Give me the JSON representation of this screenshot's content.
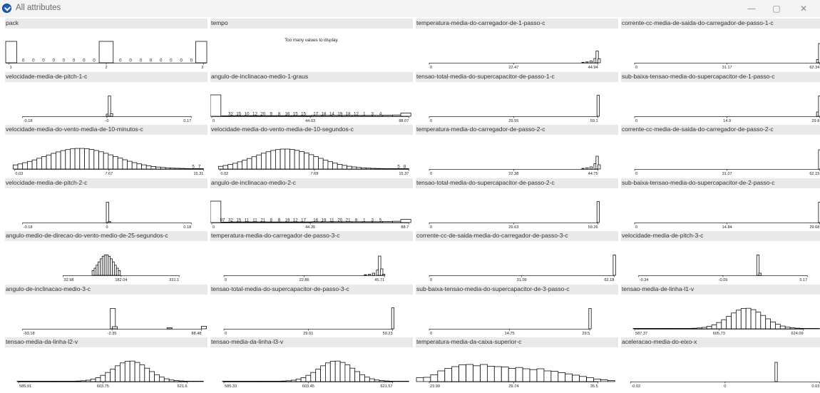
{
  "window": {
    "title": "All attributes",
    "icon": "orange-data-icon",
    "controls": [
      {
        "name": "minimize-button",
        "glyph": "—"
      },
      {
        "name": "maximize-button",
        "glyph": "▢"
      },
      {
        "name": "close-button",
        "glyph": "✕"
      }
    ]
  },
  "charts": [
    {
      "title": "pack",
      "type": "discrete",
      "ticks": [
        "1",
        "2",
        "3"
      ],
      "tick_pos": [
        0.02,
        0.5,
        0.98
      ],
      "bars": [
        [
          0,
          0.055,
          1
        ],
        [
          0.465,
          0.535,
          1
        ],
        [
          0.945,
          1,
          1
        ]
      ],
      "counts": [
        {
          "x": 0.09,
          "t": "0"
        },
        {
          "x": 0.14,
          "t": "0"
        },
        {
          "x": 0.19,
          "t": "0"
        },
        {
          "x": 0.24,
          "t": "0"
        },
        {
          "x": 0.29,
          "t": "0"
        },
        {
          "x": 0.34,
          "t": "0"
        },
        {
          "x": 0.39,
          "t": "0"
        },
        {
          "x": 0.44,
          "t": "0"
        },
        {
          "x": 0.57,
          "t": "0"
        },
        {
          "x": 0.62,
          "t": "0"
        },
        {
          "x": 0.67,
          "t": "0"
        },
        {
          "x": 0.72,
          "t": "0"
        },
        {
          "x": 0.77,
          "t": "0"
        },
        {
          "x": 0.82,
          "t": "0"
        },
        {
          "x": 0.87,
          "t": "0"
        },
        {
          "x": 0.92,
          "t": "0"
        }
      ]
    },
    {
      "title": "tempo",
      "type": "message",
      "message": "Too many values to display."
    },
    {
      "title": "temperatura-media-do-carregador-de-1-passo-c",
      "type": "hist",
      "axis": [
        0.06,
        0.9
      ],
      "ticks": [
        "0",
        "22.47",
        "44.94"
      ],
      "bins": [
        [
          0.82,
          0.02
        ],
        [
          0.84,
          0.04
        ],
        [
          0.86,
          0.08
        ],
        [
          0.88,
          0.2
        ],
        [
          0.89,
          0.55
        ],
        [
          0.9,
          0.18
        ]
      ]
    },
    {
      "title": "corrente-cc-media-de-saida-do-carregador-de-passo-1-c",
      "type": "hist",
      "axis": [
        0.06,
        0.98
      ],
      "ticks": [
        "0",
        "31.17",
        "62.34"
      ],
      "bins": [
        [
          0.965,
          0.15
        ],
        [
          0.975,
          0.9
        ]
      ]
    },
    {
      "title": "velocidade-media-de-pitch-1-c",
      "type": "hist",
      "axis": [
        0.08,
        0.92
      ],
      "ticks": [
        "-0.18",
        "-0",
        "0.17"
      ],
      "bins": [
        [
          0.5,
          0.1
        ],
        [
          0.51,
          0.95
        ],
        [
          0.52,
          0.12
        ]
      ]
    },
    {
      "title": "angulo-de-inclinacao-medio-1-graus",
      "type": "hist",
      "axis": [
        0.0,
        0.98
      ],
      "ticks": [
        "0",
        "44.03",
        "88.07"
      ],
      "bins": [
        [
          0,
          1.0
        ],
        [
          0.055,
          0.02
        ],
        [
          0.1,
          0.03
        ],
        [
          0.15,
          0.03
        ],
        [
          0.2,
          0.03
        ],
        [
          0.25,
          0.03
        ],
        [
          0.3,
          0.03
        ],
        [
          0.35,
          0.03
        ],
        [
          0.4,
          0.03
        ],
        [
          0.45,
          0.03
        ],
        [
          0.5,
          0.04
        ],
        [
          0.55,
          0.04
        ],
        [
          0.6,
          0.04
        ],
        [
          0.65,
          0.04
        ],
        [
          0.7,
          0.04
        ],
        [
          0.75,
          0.04
        ],
        [
          0.8,
          0.04
        ],
        [
          0.85,
          0.05
        ],
        [
          0.9,
          0.06
        ],
        [
          0.94,
          0.15
        ]
      ],
      "counts": [
        {
          "x": 0.1,
          "t": "32"
        },
        {
          "x": 0.14,
          "t": "15"
        },
        {
          "x": 0.18,
          "t": "10"
        },
        {
          "x": 0.22,
          "t": "12"
        },
        {
          "x": 0.26,
          "t": "20"
        },
        {
          "x": 0.3,
          "t": "9"
        },
        {
          "x": 0.34,
          "t": "8"
        },
        {
          "x": 0.38,
          "t": "16"
        },
        {
          "x": 0.42,
          "t": "15"
        },
        {
          "x": 0.46,
          "t": "15"
        },
        {
          "x": 0.52,
          "t": "17"
        },
        {
          "x": 0.56,
          "t": "18"
        },
        {
          "x": 0.6,
          "t": "14"
        },
        {
          "x": 0.64,
          "t": "19"
        },
        {
          "x": 0.68,
          "t": "18"
        },
        {
          "x": 0.72,
          "t": "12"
        },
        {
          "x": 0.76,
          "t": "1"
        },
        {
          "x": 0.8,
          "t": "3"
        },
        {
          "x": 0.84,
          "t": "4"
        }
      ]
    },
    {
      "title": "tensao-total-media-do-supercapacitor-de-passo-1-c",
      "type": "hist",
      "axis": [
        0.06,
        0.9
      ],
      "ticks": [
        "0",
        "29.55",
        "59.1"
      ],
      "bins": [
        [
          0.895,
          0.98
        ]
      ]
    },
    {
      "title": "sub-baixa-tensao-media-do-supercapacitor-de-1-passo-c",
      "type": "hist",
      "axis": [
        0.06,
        0.98
      ],
      "ticks": [
        "0",
        "14.9",
        "29.8"
      ],
      "bins": [
        [
          0.965,
          0.2
        ],
        [
          0.975,
          0.95
        ]
      ]
    },
    {
      "title": "velocidade-media-do-vento-media-de-10-minutos-c",
      "type": "hist",
      "axis": [
        0.04,
        0.98
      ],
      "ticks": [
        "0.03",
        "7.67",
        "15.31"
      ],
      "shape": "normal",
      "center": 0.37,
      "width": 0.28,
      "nbins": 40,
      "peak": 0.95,
      "counts": [
        {
          "x": 0.93,
          "t": "5"
        },
        {
          "x": 0.96,
          "t": "7"
        }
      ]
    },
    {
      "title": "velocidade-media-do-vento-media-de-10-segundos-c",
      "type": "hist",
      "axis": [
        0.04,
        0.98
      ],
      "ticks": [
        "0.02",
        "7.69",
        "15.37"
      ],
      "shape": "normal",
      "center": 0.37,
      "width": 0.25,
      "nbins": 40,
      "peak": 0.92,
      "counts": [
        {
          "x": 0.93,
          "t": "5"
        },
        {
          "x": 0.96,
          "t": "8"
        }
      ]
    },
    {
      "title": "temperatura-media-do-carregador-de-passo-2-c",
      "type": "hist",
      "axis": [
        0.06,
        0.9
      ],
      "ticks": [
        "0",
        "22.38",
        "44.75"
      ],
      "bins": [
        [
          0.82,
          0.03
        ],
        [
          0.84,
          0.06
        ],
        [
          0.86,
          0.1
        ],
        [
          0.88,
          0.25
        ],
        [
          0.89,
          0.6
        ],
        [
          0.9,
          0.2
        ]
      ]
    },
    {
      "title": "corrente-cc-media-de-saida-do-carregador-de-passo-2-c",
      "type": "hist",
      "axis": [
        0.06,
        0.98
      ],
      "ticks": [
        "0",
        "31.07",
        "62.15"
      ],
      "bins": [
        [
          0.975,
          0.9
        ]
      ]
    },
    {
      "title": "velocidade-media-de-pitch-2-c",
      "type": "hist",
      "axis": [
        0.08,
        0.92
      ],
      "ticks": [
        "-0.18",
        "0",
        "0.18"
      ],
      "bins": [
        [
          0.5,
          0.95
        ],
        [
          0.51,
          0.05
        ]
      ]
    },
    {
      "title": "angulo-de-inclinacao-medio-2-c",
      "type": "hist",
      "axis": [
        0.0,
        0.98
      ],
      "ticks": [
        "0",
        "44.35",
        "88.7"
      ],
      "bins": [
        [
          0,
          1.0
        ],
        [
          0.055,
          0.02
        ],
        [
          0.1,
          0.03
        ],
        [
          0.15,
          0.03
        ],
        [
          0.2,
          0.03
        ],
        [
          0.25,
          0.03
        ],
        [
          0.3,
          0.03
        ],
        [
          0.35,
          0.03
        ],
        [
          0.4,
          0.03
        ],
        [
          0.45,
          0.03
        ],
        [
          0.5,
          0.04
        ],
        [
          0.55,
          0.04
        ],
        [
          0.6,
          0.04
        ],
        [
          0.65,
          0.04
        ],
        [
          0.7,
          0.04
        ],
        [
          0.75,
          0.04
        ],
        [
          0.8,
          0.04
        ],
        [
          0.85,
          0.05
        ],
        [
          0.9,
          0.06
        ],
        [
          0.94,
          0.15
        ]
      ],
      "counts": [
        {
          "x": 0.06,
          "t": "97"
        },
        {
          "x": 0.1,
          "t": "32"
        },
        {
          "x": 0.14,
          "t": "15"
        },
        {
          "x": 0.18,
          "t": "11"
        },
        {
          "x": 0.22,
          "t": "11"
        },
        {
          "x": 0.26,
          "t": "21"
        },
        {
          "x": 0.3,
          "t": "8"
        },
        {
          "x": 0.34,
          "t": "8"
        },
        {
          "x": 0.38,
          "t": "19"
        },
        {
          "x": 0.42,
          "t": "12"
        },
        {
          "x": 0.46,
          "t": "17"
        },
        {
          "x": 0.52,
          "t": "16"
        },
        {
          "x": 0.56,
          "t": "19"
        },
        {
          "x": 0.6,
          "t": "11"
        },
        {
          "x": 0.64,
          "t": "20"
        },
        {
          "x": 0.68,
          "t": "21"
        },
        {
          "x": 0.72,
          "t": "9"
        },
        {
          "x": 0.76,
          "t": "1"
        },
        {
          "x": 0.8,
          "t": "3"
        },
        {
          "x": 0.84,
          "t": "5"
        }
      ]
    },
    {
      "title": "tensao-total-media-do-supercapacitor-de-passo-2-c",
      "type": "hist",
      "axis": [
        0.06,
        0.9
      ],
      "ticks": [
        "0",
        "29.63",
        "59.26"
      ],
      "bins": [
        [
          0.895,
          0.98
        ]
      ]
    },
    {
      "title": "sub-baixa-tensao-media-do-supercapacitor-de-2-passo-c",
      "type": "hist",
      "axis": [
        0.06,
        0.98
      ],
      "ticks": [
        "0",
        "14.84",
        "29.68"
      ],
      "bins": [
        [
          0.975,
          0.95
        ]
      ]
    },
    {
      "title": "angulo-medio-de-direcao-do-vento-medio-de-25-segundos-c",
      "type": "hist",
      "axis": [
        0.28,
        0.86
      ],
      "ticks": [
        "32.98",
        "182.04",
        "331.1"
      ],
      "shape": "normal",
      "center": 0.5,
      "width": 0.06,
      "nbins": 14,
      "peak": 0.95,
      "xrange": [
        0.43,
        0.57
      ]
    },
    {
      "title": "temperatura-media-do-carregador-de-passo-3-c",
      "type": "hist",
      "axis": [
        0.06,
        0.86
      ],
      "ticks": [
        "0",
        "22.86",
        "45.71"
      ],
      "bins": [
        [
          0.76,
          0.03
        ],
        [
          0.78,
          0.05
        ],
        [
          0.8,
          0.1
        ],
        [
          0.82,
          0.25
        ],
        [
          0.83,
          0.9
        ],
        [
          0.84,
          0.3
        ],
        [
          0.85,
          0.05
        ]
      ]
    },
    {
      "title": "corrente-cc-de-saida-media-do-carregador-de-passo-3-c",
      "type": "hist",
      "axis": [
        0.06,
        0.98
      ],
      "ticks": [
        "0",
        "31.09",
        "62.18"
      ],
      "bins": [
        [
          0.975,
          0.95
        ]
      ]
    },
    {
      "title": "velocidade-media-de-pitch-3-c",
      "type": "hist",
      "axis": [
        0.08,
        0.92
      ],
      "ticks": [
        "-0.34",
        "-0.09",
        "0.17"
      ],
      "bins": [
        [
          0.67,
          0.95
        ],
        [
          0.68,
          0.1
        ]
      ]
    },
    {
      "title": "angulo-de-inclinacao-medio-3-c",
      "type": "hist",
      "axis": [
        0.08,
        0.97
      ],
      "ticks": [
        "-93.18",
        "-2.35",
        "88.48"
      ],
      "bins": [
        [
          0.52,
          0.95
        ],
        [
          0.53,
          0.1
        ],
        [
          0.8,
          0.05
        ],
        [
          0.97,
          0.12
        ]
      ]
    },
    {
      "title": "tensao-total-media-do-supercapacitor-de-passo-3-c",
      "type": "hist",
      "axis": [
        0.06,
        0.9
      ],
      "ticks": [
        "0",
        "29.61",
        "59.23"
      ],
      "bins": [
        [
          0.895,
          0.98
        ]
      ]
    },
    {
      "title": "sub-baixa-tensao-media-do-supercapacitor-de-3-passo-c",
      "type": "hist",
      "axis": [
        0.06,
        0.86
      ],
      "ticks": [
        "0",
        "14.75",
        "29.5"
      ],
      "bins": [
        [
          0.855,
          0.95
        ]
      ]
    },
    {
      "title": "tensao-media-de-linha-l1-v",
      "type": "hist",
      "axis": [
        0.06,
        0.9
      ],
      "ticks": [
        "587.37",
        "605.73",
        "624.09"
      ],
      "shape": "normal",
      "center": 0.62,
      "width": 0.14,
      "nbins": 38,
      "peak": 0.95,
      "xrange": [
        0.06,
        0.98
      ]
    },
    {
      "title": "tensao-media-da-linha-l2-v",
      "type": "hist",
      "axis": [
        0.06,
        0.9
      ],
      "ticks": [
        "585.91",
        "603.75",
        "621.6"
      ],
      "shape": "normal",
      "center": 0.62,
      "width": 0.14,
      "nbins": 38,
      "peak": 0.95,
      "xrange": [
        0.06,
        0.98
      ]
    },
    {
      "title": "tensao-media-da-linha-l3-v",
      "type": "hist",
      "axis": [
        0.06,
        0.9
      ],
      "ticks": [
        "585.33",
        "603.45",
        "621.57"
      ],
      "shape": "normal",
      "center": 0.62,
      "width": 0.14,
      "nbins": 38,
      "peak": 0.95,
      "xrange": [
        0.06,
        0.98
      ]
    },
    {
      "title": "temperatura-media-da-caixa-superior-c",
      "type": "hist",
      "axis": [
        0.06,
        0.9
      ],
      "ticks": [
        "23.99",
        "29.74",
        "35.5"
      ],
      "shape": "broad",
      "nbins": 28,
      "xrange": [
        0.0,
        0.98
      ]
    },
    {
      "title": "aceleracao-media-do-eixo-x",
      "type": "hist",
      "axis": [
        0.04,
        0.98
      ],
      "ticks": [
        "-0.02",
        "0",
        "0.03"
      ],
      "bins": [
        [
          0.76,
          0.9
        ]
      ]
    }
  ]
}
